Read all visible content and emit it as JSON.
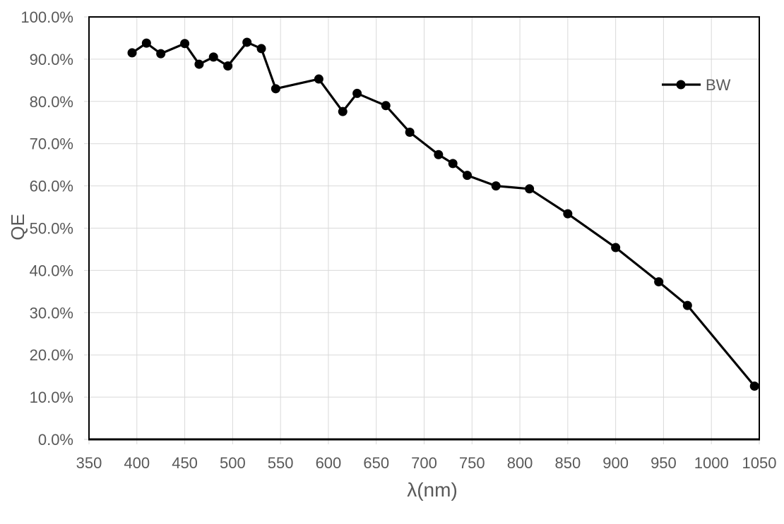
{
  "chart_data": {
    "type": "line",
    "title": "",
    "xlabel": "λ(nm)",
    "ylabel": "QE",
    "xlim": [
      350,
      1050
    ],
    "ylim": [
      0,
      100
    ],
    "x_ticks": [
      350,
      400,
      450,
      500,
      550,
      600,
      650,
      700,
      750,
      800,
      850,
      900,
      950,
      1000,
      1050
    ],
    "y_ticks": [
      0,
      10,
      20,
      30,
      40,
      50,
      60,
      70,
      80,
      90,
      100
    ],
    "y_tick_labels": [
      "0.0%",
      "10.0%",
      "20.0%",
      "30.0%",
      "40.0%",
      "50.0%",
      "60.0%",
      "70.0%",
      "80.0%",
      "90.0%",
      "100.0%"
    ],
    "grid": true,
    "legend": {
      "position": "top-right-inside"
    },
    "series": [
      {
        "name": "BW",
        "color": "#000000",
        "marker": "circle",
        "x": [
          395,
          410,
          425,
          450,
          465,
          480,
          495,
          515,
          530,
          545,
          590,
          615,
          630,
          660,
          685,
          715,
          730,
          745,
          775,
          810,
          850,
          900,
          945,
          975,
          1045
        ],
        "y": [
          91.5,
          93.8,
          91.3,
          93.7,
          88.8,
          90.5,
          88.4,
          94.0,
          92.5,
          83.0,
          85.3,
          77.6,
          81.9,
          79.0,
          72.7,
          67.4,
          65.3,
          62.5,
          60.0,
          59.3,
          53.4,
          45.4,
          37.3,
          31.7,
          12.6
        ]
      }
    ],
    "colors": {
      "grid": "#d9d9d9",
      "axis_text": "#595959",
      "plot_border": "#000000",
      "background": "#ffffff"
    }
  }
}
